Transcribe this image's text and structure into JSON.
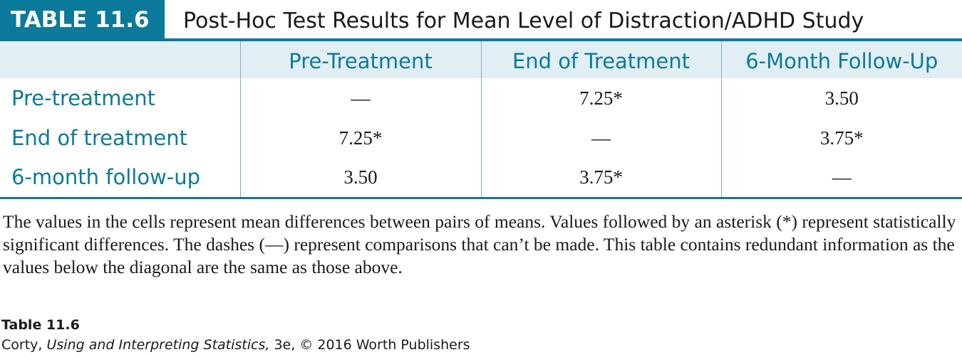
{
  "header": {
    "label": "TABLE 11.6",
    "title": "Post-Hoc Test Results for Mean Level of Distraction/ADHD Study"
  },
  "table": {
    "columns": [
      "",
      "Pre-Treatment",
      "End of Treatment",
      "6-Month Follow-Up"
    ],
    "rows": [
      {
        "label": "Pre-treatment",
        "cells": [
          "—",
          "7.25*",
          "3.50"
        ]
      },
      {
        "label": "End of treatment",
        "cells": [
          "7.25*",
          "—",
          "3.75*"
        ]
      },
      {
        "label": "6-month follow-up",
        "cells": [
          "3.50",
          "3.75*",
          "—"
        ]
      }
    ]
  },
  "note": "The values in the cells represent mean differences between pairs of means. Values followed by an asterisk (*) represent statistically significant differences. The dashes (—) represent comparisons that can’t be made. This table contains redundant information as the values below the diagonal are the same as those above.",
  "caption": {
    "title": "Table 11.6",
    "author": "Corty,",
    "book": "Using and Interpreting Statistics,",
    "rest": "3e, © 2016 Worth Publishers"
  },
  "colors": {
    "accent": "#0b7a9b",
    "header_row_bg": "#e1eef3",
    "grid_line": "#7fb3c4"
  }
}
